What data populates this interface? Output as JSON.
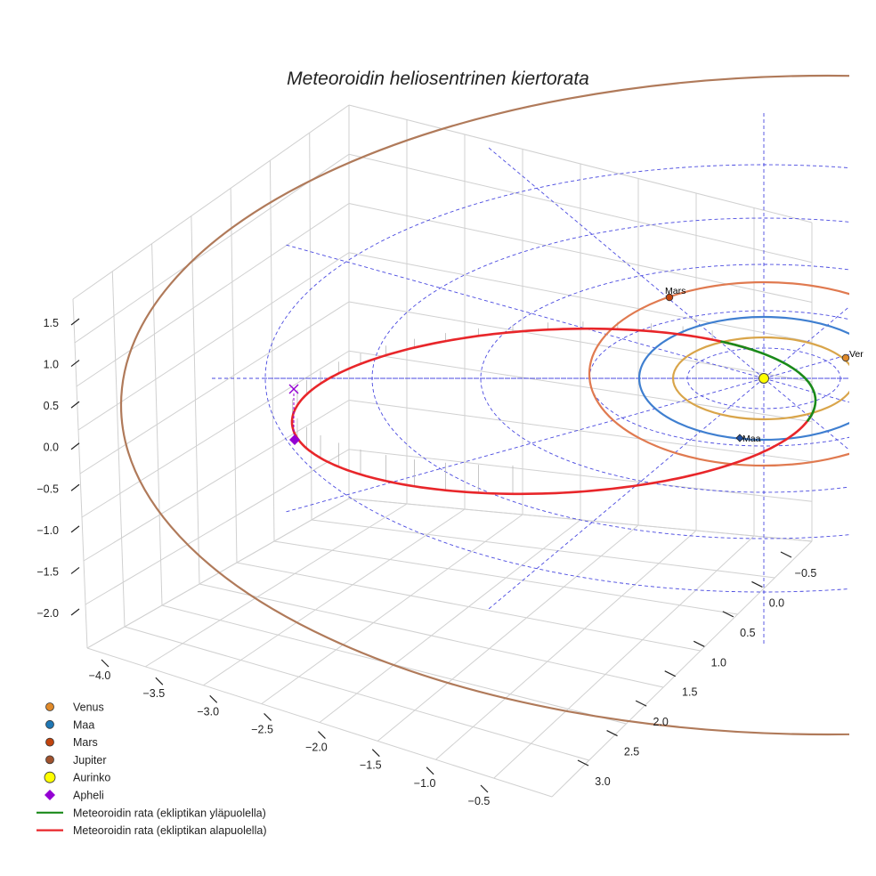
{
  "chart_data": {
    "type": "line3d",
    "title": "Meteoroidin heliosentrinen kiertorata",
    "axes": {
      "x": {
        "ticks": [
          "−4.0",
          "−3.5",
          "−3.0",
          "−2.5",
          "−2.0",
          "−1.5",
          "−1.0",
          "−0.5"
        ],
        "range": [
          -4.2,
          0.2
        ]
      },
      "y": {
        "ticks": [
          "−0.5",
          "0.0",
          "0.5",
          "1.0",
          "1.5",
          "2.0",
          "2.5",
          "3.0"
        ],
        "range": [
          -0.8,
          3.3
        ]
      },
      "z": {
        "ticks": [
          "1.5",
          "1.0",
          "0.5",
          "0.0",
          "−0.5",
          "−1.0",
          "−1.5",
          "−2.0"
        ],
        "range": [
          -2.3,
          1.8
        ]
      }
    },
    "planets": [
      {
        "name": "Venus",
        "label": "Venus",
        "semi_major_axis": 0.72,
        "color": "#e59a2b",
        "orbit_color": "#d9a54a"
      },
      {
        "name": "Maa",
        "label": "Maa",
        "semi_major_axis": 1.0,
        "color": "#1f77b4",
        "orbit_color": "#3f7fd0"
      },
      {
        "name": "Mars",
        "label": "Mars",
        "semi_major_axis": 1.52,
        "color": "#c1440e",
        "orbit_color": "#e07a50"
      },
      {
        "name": "Jupiter",
        "label": "Jupiter",
        "semi_major_axis": 5.2,
        "color": "#a0522d",
        "orbit_color": "#b07a5a"
      }
    ],
    "sun": {
      "name": "Aurinko",
      "color": "#ffff00"
    },
    "aphelion": {
      "name": "Apheli",
      "color": "#9400d3"
    },
    "orbit_segments": [
      {
        "name": "Meteoroidin rata (ekliptikan yläpuolella)",
        "color": "#1a8a1a"
      },
      {
        "name": "Meteoroidin rata (ekliptikan alapuolella)",
        "color": "#e8262a"
      }
    ],
    "ecliptic_grid": {
      "color": "#4444dd",
      "style": "dashed"
    }
  },
  "point_labels": {
    "mars": "Mars",
    "venus": "Ver",
    "maa": "Maa"
  },
  "legend": [
    {
      "label": "Venus",
      "marker": "circle",
      "color": "#e08a2a"
    },
    {
      "label": "Maa",
      "marker": "circle",
      "color": "#1f77b4"
    },
    {
      "label": "Mars",
      "marker": "circle",
      "color": "#c1440e"
    },
    {
      "label": "Jupiter",
      "marker": "circle",
      "color": "#a0522d"
    },
    {
      "label": "Aurinko",
      "marker": "circle-large",
      "color": "#ffff00"
    },
    {
      "label": "Apheli",
      "marker": "diamond",
      "color": "#9400d3"
    },
    {
      "label": "Meteoroidin rata (ekliptikan yläpuolella)",
      "marker": "line",
      "color": "#1a8a1a"
    },
    {
      "label": "Meteoroidin rata (ekliptikan alapuolella)",
      "marker": "line",
      "color": "#e8262a"
    }
  ]
}
